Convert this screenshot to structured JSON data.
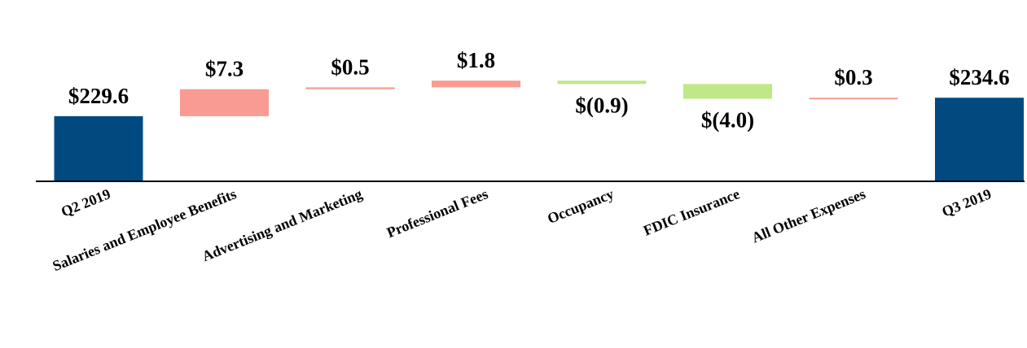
{
  "chart_data": {
    "type": "waterfall",
    "categories": [
      "Q2 2019",
      "Salaries and Employee Benefits",
      "Advertising and Marketing",
      "Professional Fees",
      "Occupancy",
      "FDIC Insurance",
      "All Other Expenses",
      "Q3 2019"
    ],
    "values": [
      229.6,
      7.3,
      0.5,
      1.8,
      -0.9,
      -4.0,
      0.3,
      234.6
    ],
    "kinds": [
      "total",
      "delta",
      "delta",
      "delta",
      "delta",
      "delta",
      "delta",
      "total"
    ],
    "data_labels": [
      "$229.6",
      "$7.3",
      "$0.5",
      "$1.8",
      "$(0.9)",
      "$(4.0)",
      "$0.3",
      "$234.6"
    ],
    "title": "",
    "xlabel": "",
    "ylabel": "",
    "ylim": [
      212,
      240
    ],
    "grid": false,
    "legend": "none",
    "colors": {
      "total": "#004a80",
      "increase": "#f99b92",
      "decrease": "#bfe888",
      "axis": "#000000"
    }
  }
}
